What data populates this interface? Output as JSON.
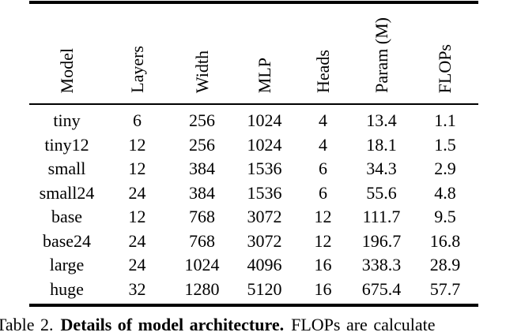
{
  "table": {
    "columns": [
      "Model",
      "Layers",
      "Width",
      "MLP",
      "Heads",
      "Param (M)",
      "FLOPs"
    ],
    "rows": [
      [
        "tiny",
        "6",
        "256",
        "1024",
        "4",
        "13.4",
        "1.1"
      ],
      [
        "tiny12",
        "12",
        "256",
        "1024",
        "4",
        "18.1",
        "1.5"
      ],
      [
        "small",
        "12",
        "384",
        "1536",
        "6",
        "34.3",
        "2.9"
      ],
      [
        "small24",
        "24",
        "384",
        "1536",
        "6",
        "55.6",
        "4.8"
      ],
      [
        "base",
        "12",
        "768",
        "3072",
        "12",
        "111.7",
        "9.5"
      ],
      [
        "base24",
        "24",
        "768",
        "3072",
        "12",
        "196.7",
        "16.8"
      ],
      [
        "large",
        "24",
        "1024",
        "4096",
        "16",
        "338.3",
        "28.9"
      ],
      [
        "huge",
        "32",
        "1280",
        "5120",
        "16",
        "675.4",
        "57.7"
      ]
    ]
  },
  "caption": {
    "label": "Table 2.",
    "bold_title": "Details of model architecture.",
    "rest": "FLOPs are calculate"
  },
  "colors": {
    "background": "#ffffff",
    "text": "#000000",
    "rule": "#000000"
  }
}
